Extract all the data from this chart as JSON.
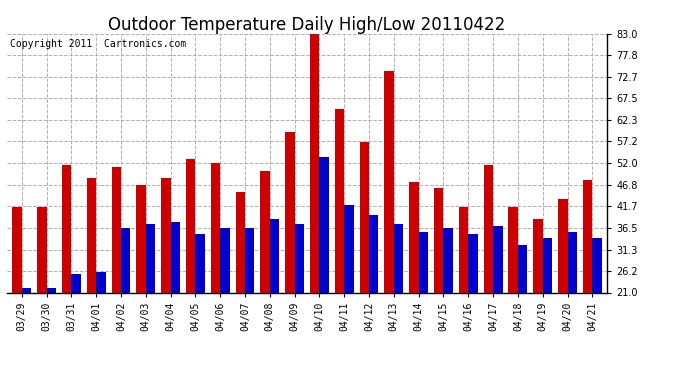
{
  "title": "Outdoor Temperature Daily High/Low 20110422",
  "copyright": "Copyright 2011  Cartronics.com",
  "dates": [
    "03/29",
    "03/30",
    "03/31",
    "04/01",
    "04/02",
    "04/03",
    "04/04",
    "04/05",
    "04/06",
    "04/07",
    "04/08",
    "04/09",
    "04/10",
    "04/11",
    "04/12",
    "04/13",
    "04/14",
    "04/15",
    "04/16",
    "04/17",
    "04/18",
    "04/19",
    "04/20",
    "04/21"
  ],
  "highs": [
    41.5,
    41.5,
    51.5,
    48.5,
    51.0,
    46.8,
    48.5,
    53.0,
    52.0,
    45.0,
    50.0,
    59.5,
    83.0,
    65.0,
    57.0,
    74.0,
    47.5,
    46.0,
    41.5,
    51.5,
    41.5,
    38.5,
    43.5,
    48.0
  ],
  "lows": [
    22.0,
    22.0,
    25.5,
    26.0,
    36.5,
    37.5,
    38.0,
    35.0,
    36.5,
    36.5,
    38.5,
    37.5,
    53.5,
    42.0,
    39.5,
    37.5,
    35.5,
    36.5,
    35.0,
    37.0,
    32.5,
    34.0,
    35.5,
    34.0
  ],
  "high_color": "#cc0000",
  "low_color": "#0000cc",
  "background_color": "#ffffff",
  "plot_background": "#ffffff",
  "grid_color": "#b0b0b0",
  "yticks": [
    21.0,
    26.2,
    31.3,
    36.5,
    41.7,
    46.8,
    52.0,
    57.2,
    62.3,
    67.5,
    72.7,
    77.8,
    83.0
  ],
  "ymin": 21.0,
  "ymax": 83.0,
  "title_fontsize": 12,
  "tick_fontsize": 7,
  "copyright_fontsize": 7,
  "bar_width": 0.38
}
